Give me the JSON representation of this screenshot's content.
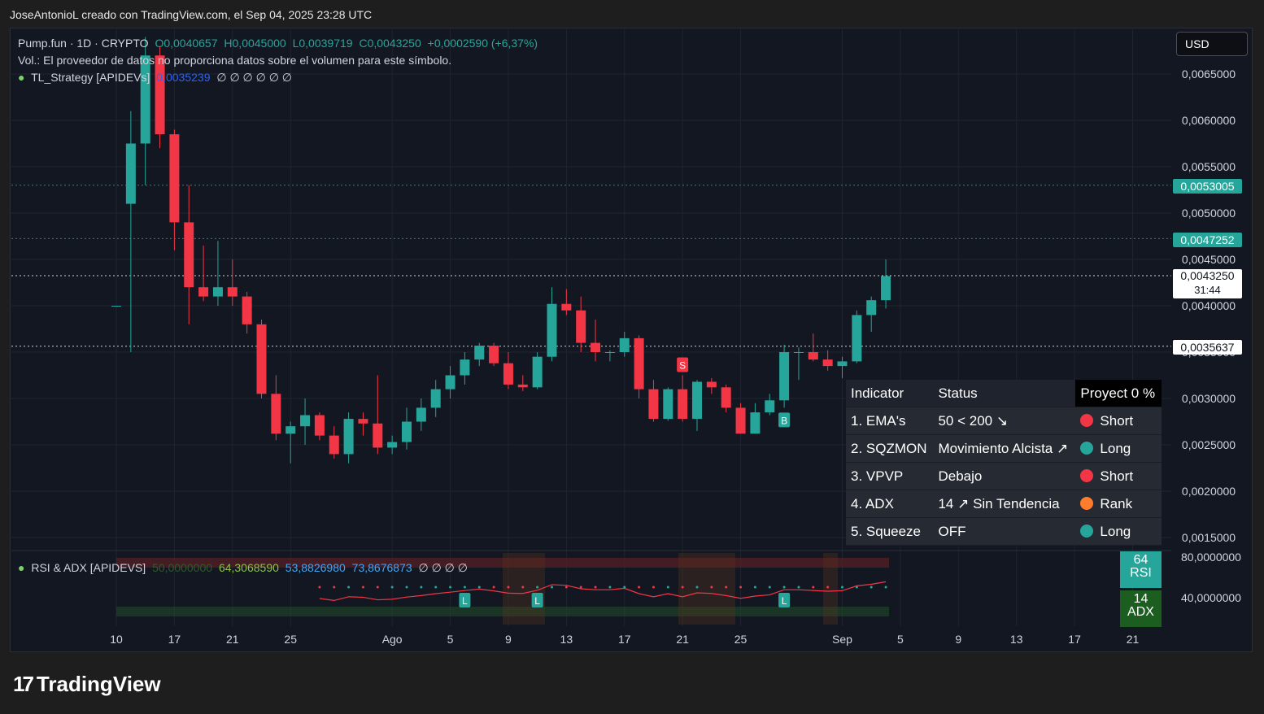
{
  "header": {
    "attribution": "JoseAntonioL creado con TradingView.com, el Sep 04, 2025 23:28 UTC"
  },
  "legend": {
    "symbol": "Pump.fun · 1D · CRYPTO",
    "open": "O0,0040657",
    "high": "H0,0045000",
    "low": "L0,0039719",
    "close": "C0,0043250",
    "change": "+0,0002590 (+6,37%)",
    "volume_note": "Vol.: El proveedor de datos no proporciona datos sobre el volumen para este símbolo.",
    "strategy_name": "TL_Strategy [APIDEVs]",
    "strategy_value": "0,0035239",
    "strategy_nulls": "∅ ∅ ∅ ∅ ∅ ∅"
  },
  "currency": "USD",
  "price_labels": {
    "level1": "0,0053005",
    "level2": "0,0047252",
    "current": "0,0043250",
    "countdown": "31:44",
    "level3": "0,0035637"
  },
  "indicator_table": {
    "headers": [
      "Indicator",
      "Status",
      "Proyect 0 %"
    ],
    "rows": [
      {
        "indicator": "1. EMA's",
        "status": "50 < 200 ↘",
        "signal": "Short",
        "color": "#f23645"
      },
      {
        "indicator": "2. SQZMON",
        "status": "Movimiento Alcista ↗",
        "signal": "Long",
        "color": "#26a69a"
      },
      {
        "indicator": "3. VPVP",
        "status": "Debajo",
        "signal": "Short",
        "color": "#f23645"
      },
      {
        "indicator": "4. ADX",
        "status": "14 ↗ Sin Tendencia",
        "signal": "Rank",
        "color": "#ff7b2e"
      },
      {
        "indicator": "5. Squeeze",
        "status": "OFF",
        "signal": "Long",
        "color": "#26a69a"
      }
    ]
  },
  "rsi_panel": {
    "name": "RSI & ADX [APIDEVS]",
    "v1": "50,0000000",
    "v2": "64,3068590",
    "v3": "53,8826980",
    "v4": "73,8676873",
    "nulls": "∅ ∅ ∅ ∅",
    "axis_top": "80,0000000",
    "axis_mid": "40,0000000",
    "rsi_value": "64",
    "rsi_label": "RSI",
    "adx_value": "14",
    "adx_label": "ADX"
  },
  "brand": "TradingView",
  "chart_data": {
    "type": "candlestick",
    "y_axis_ticks": [
      "0,0065000",
      "0,0060000",
      "0,0055000",
      "0,0050000",
      "0,0045000",
      "0,0040000",
      "0,0035000",
      "0,0030000",
      "0,0025000",
      "0,0020000",
      "0,0015000"
    ],
    "ylim": [
      0.0015,
      0.0065
    ],
    "x_axis_ticks": [
      {
        "label": "10",
        "day": 0
      },
      {
        "label": "17",
        "day": 4
      },
      {
        "label": "21",
        "day": 8
      },
      {
        "label": "25",
        "day": 12
      },
      {
        "label": "Ago",
        "day": 19
      },
      {
        "label": "5",
        "day": 23
      },
      {
        "label": "9",
        "day": 27
      },
      {
        "label": "13",
        "day": 31
      },
      {
        "label": "17",
        "day": 35
      },
      {
        "label": "21",
        "day": 39
      },
      {
        "label": "25",
        "day": 43
      },
      {
        "label": "Sep",
        "day": 50
      },
      {
        "label": "5",
        "day": 54
      },
      {
        "label": "9",
        "day": 58
      },
      {
        "label": "13",
        "day": 62
      },
      {
        "label": "17",
        "day": 66
      },
      {
        "label": "21",
        "day": 70
      }
    ],
    "horizontal_levels": [
      {
        "value": 0.0053005,
        "style": "dotted",
        "color": "#26a69a"
      },
      {
        "value": 0.0047252,
        "style": "dotted",
        "color": "#26a69a"
      },
      {
        "value": 0.004325,
        "style": "dotted",
        "color": "#ffffff"
      },
      {
        "value": 0.0035637,
        "style": "dotted",
        "color": "#ffffff"
      }
    ],
    "candles": [
      {
        "o": 0.004,
        "h": 0.004,
        "l": 0.004,
        "c": 0.004
      },
      {
        "o": 0.0051,
        "h": 0.0061,
        "l": 0.0035,
        "c": 0.00575
      },
      {
        "o": 0.00575,
        "h": 0.0069,
        "l": 0.0053,
        "c": 0.0067
      },
      {
        "o": 0.0067,
        "h": 0.0068,
        "l": 0.0057,
        "c": 0.00585
      },
      {
        "o": 0.00585,
        "h": 0.0059,
        "l": 0.0046,
        "c": 0.0049
      },
      {
        "o": 0.0049,
        "h": 0.0053,
        "l": 0.0038,
        "c": 0.0042
      },
      {
        "o": 0.0042,
        "h": 0.00465,
        "l": 0.00405,
        "c": 0.0041
      },
      {
        "o": 0.0041,
        "h": 0.0047,
        "l": 0.004,
        "c": 0.0042
      },
      {
        "o": 0.0042,
        "h": 0.0045,
        "l": 0.004,
        "c": 0.0041
      },
      {
        "o": 0.0041,
        "h": 0.00415,
        "l": 0.0037,
        "c": 0.0038
      },
      {
        "o": 0.0038,
        "h": 0.00385,
        "l": 0.003,
        "c": 0.00305
      },
      {
        "o": 0.00305,
        "h": 0.00325,
        "l": 0.00255,
        "c": 0.00262
      },
      {
        "o": 0.00262,
        "h": 0.00275,
        "l": 0.0023,
        "c": 0.0027
      },
      {
        "o": 0.0027,
        "h": 0.003,
        "l": 0.0025,
        "c": 0.00282
      },
      {
        "o": 0.00282,
        "h": 0.00285,
        "l": 0.00255,
        "c": 0.0026
      },
      {
        "o": 0.0026,
        "h": 0.0027,
        "l": 0.00235,
        "c": 0.0024
      },
      {
        "o": 0.0024,
        "h": 0.00285,
        "l": 0.0023,
        "c": 0.00278
      },
      {
        "o": 0.00278,
        "h": 0.00285,
        "l": 0.0026,
        "c": 0.00273
      },
      {
        "o": 0.00273,
        "h": 0.00325,
        "l": 0.0024,
        "c": 0.00247
      },
      {
        "o": 0.00247,
        "h": 0.0026,
        "l": 0.0024,
        "c": 0.00253
      },
      {
        "o": 0.00253,
        "h": 0.0029,
        "l": 0.00245,
        "c": 0.00275
      },
      {
        "o": 0.00275,
        "h": 0.003,
        "l": 0.00265,
        "c": 0.0029
      },
      {
        "o": 0.0029,
        "h": 0.0032,
        "l": 0.0028,
        "c": 0.0031
      },
      {
        "o": 0.0031,
        "h": 0.00335,
        "l": 0.003,
        "c": 0.00325
      },
      {
        "o": 0.00325,
        "h": 0.0035,
        "l": 0.00315,
        "c": 0.00342
      },
      {
        "o": 0.00342,
        "h": 0.0036,
        "l": 0.00335,
        "c": 0.00357
      },
      {
        "o": 0.00357,
        "h": 0.0036,
        "l": 0.00335,
        "c": 0.00338
      },
      {
        "o": 0.00338,
        "h": 0.0035,
        "l": 0.0031,
        "c": 0.00315
      },
      {
        "o": 0.00315,
        "h": 0.00325,
        "l": 0.00308,
        "c": 0.00312
      },
      {
        "o": 0.00312,
        "h": 0.0035,
        "l": 0.0031,
        "c": 0.00345
      },
      {
        "o": 0.00345,
        "h": 0.0042,
        "l": 0.0034,
        "c": 0.00402
      },
      {
        "o": 0.00402,
        "h": 0.00418,
        "l": 0.0039,
        "c": 0.00395
      },
      {
        "o": 0.00395,
        "h": 0.0041,
        "l": 0.0035,
        "c": 0.0036
      },
      {
        "o": 0.0036,
        "h": 0.00385,
        "l": 0.0034,
        "c": 0.0035
      },
      {
        "o": 0.0035,
        "h": 0.00352,
        "l": 0.0034,
        "c": 0.0035
      },
      {
        "o": 0.0035,
        "h": 0.00372,
        "l": 0.00345,
        "c": 0.00365
      },
      {
        "o": 0.00365,
        "h": 0.00368,
        "l": 0.003,
        "c": 0.0031
      },
      {
        "o": 0.0031,
        "h": 0.0032,
        "l": 0.00275,
        "c": 0.00278
      },
      {
        "o": 0.00278,
        "h": 0.00312,
        "l": 0.00276,
        "c": 0.0031
      },
      {
        "o": 0.0031,
        "h": 0.00325,
        "l": 0.00275,
        "c": 0.00278
      },
      {
        "o": 0.00278,
        "h": 0.0032,
        "l": 0.00265,
        "c": 0.00318
      },
      {
        "o": 0.00318,
        "h": 0.00322,
        "l": 0.00305,
        "c": 0.00312
      },
      {
        "o": 0.00312,
        "h": 0.00315,
        "l": 0.00285,
        "c": 0.0029
      },
      {
        "o": 0.0029,
        "h": 0.00295,
        "l": 0.00262,
        "c": 0.00262
      },
      {
        "o": 0.00262,
        "h": 0.00295,
        "l": 0.00262,
        "c": 0.00285
      },
      {
        "o": 0.00285,
        "h": 0.00305,
        "l": 0.00282,
        "c": 0.00298
      },
      {
        "o": 0.00298,
        "h": 0.00358,
        "l": 0.0029,
        "c": 0.0035
      },
      {
        "o": 0.0035,
        "h": 0.00355,
        "l": 0.0032,
        "c": 0.0035
      },
      {
        "o": 0.0035,
        "h": 0.0037,
        "l": 0.0034,
        "c": 0.00342
      },
      {
        "o": 0.00342,
        "h": 0.00352,
        "l": 0.0033,
        "c": 0.00335
      },
      {
        "o": 0.00335,
        "h": 0.00345,
        "l": 0.00322,
        "c": 0.0034
      },
      {
        "o": 0.0034,
        "h": 0.00395,
        "l": 0.00338,
        "c": 0.0039
      },
      {
        "o": 0.0039,
        "h": 0.0041,
        "l": 0.00372,
        "c": 0.00406
      },
      {
        "o": 0.00406,
        "h": 0.0045,
        "l": 0.00397,
        "c": 0.00432
      }
    ],
    "signals": [
      {
        "label": "S",
        "day": 39,
        "color": "#f23645"
      },
      {
        "label": "B",
        "day": 46,
        "color": "#26a69a"
      }
    ],
    "rsi_signals": [
      {
        "label": "L",
        "day": 24
      },
      {
        "label": "L",
        "day": 29
      },
      {
        "label": "L",
        "day": 46
      }
    ]
  }
}
